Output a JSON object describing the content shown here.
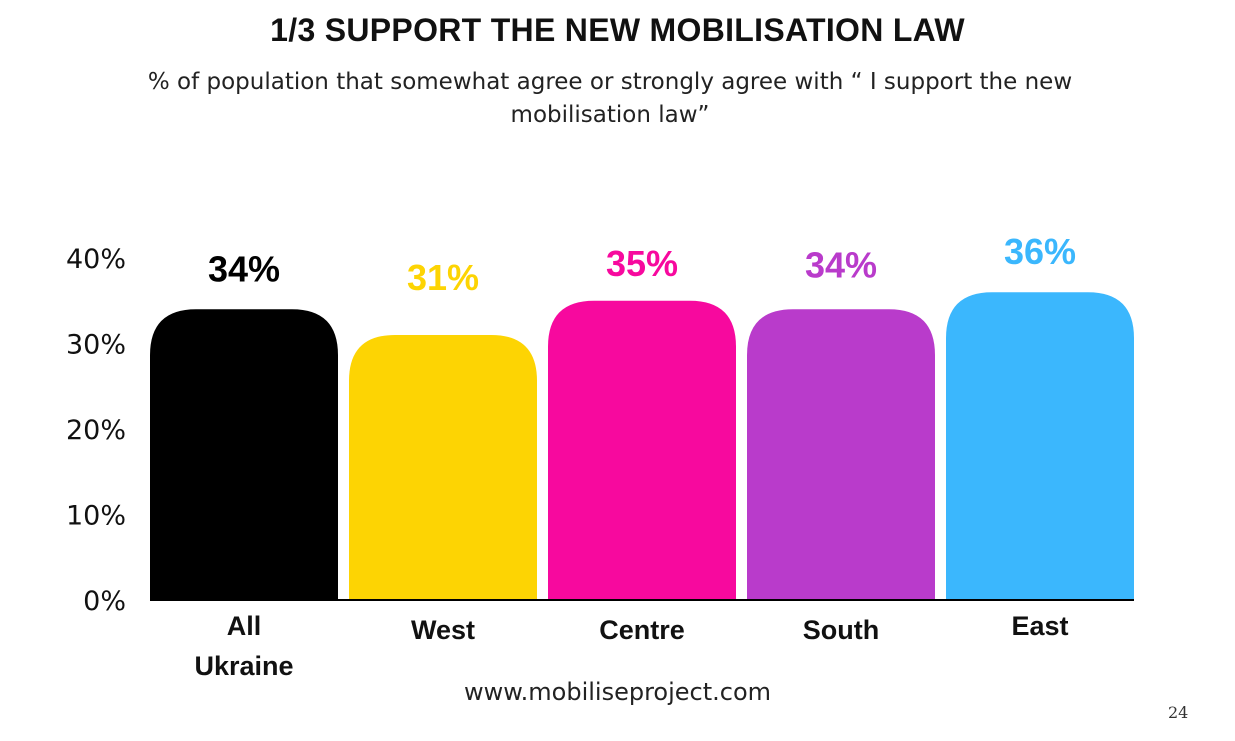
{
  "title": "1/3 SUPPORT THE NEW MOBILISATION LAW",
  "subtitle": "% of population that somewhat agree or strongly agree with “ I support the new mobilisation law”",
  "footer": "www.mobiliseproject.com",
  "page_number": "24",
  "chart_data": {
    "type": "bar",
    "categories": [
      "All Ukraine",
      "West",
      "Centre",
      "South",
      "East"
    ],
    "values": [
      34,
      31,
      35,
      34,
      36
    ],
    "data_labels": [
      "34%",
      "31%",
      "35%",
      "34%",
      "36%"
    ],
    "colors": [
      "#000000",
      "#FDD403",
      "#F7099E",
      "#B93BCB",
      "#3BB7FD"
    ],
    "y_ticks": [
      "0%",
      "10%",
      "20%",
      "30%",
      "40%"
    ],
    "ylim": [
      0,
      40
    ],
    "grid": false,
    "legend": "none"
  }
}
